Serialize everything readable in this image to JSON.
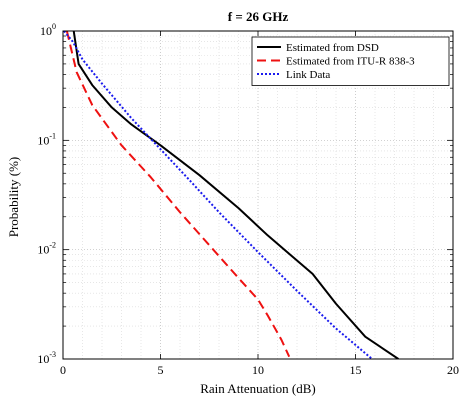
{
  "chart_data": {
    "type": "line",
    "title": "f = 26 GHz",
    "xlabel": "Rain Attenuation (dB)",
    "ylabel": "Probability (%)",
    "xlim": [
      0,
      20
    ],
    "ylim": [
      0.001,
      1
    ],
    "yscale": "log",
    "grid": "on (major and minor, dotted)",
    "legend_position": "top-right",
    "x_ticks": [
      {
        "value": 0,
        "label": "0"
      },
      {
        "value": 5,
        "label": "5"
      },
      {
        "value": 10,
        "label": "10"
      },
      {
        "value": 15,
        "label": "15"
      },
      {
        "value": 20,
        "label": "20"
      }
    ],
    "y_ticks": [
      {
        "value": 1,
        "base": "10",
        "exp": "0"
      },
      {
        "value": 0.1,
        "base": "10",
        "exp": "-1"
      },
      {
        "value": 0.01,
        "base": "10",
        "exp": "-2"
      },
      {
        "value": 0.001,
        "base": "10",
        "exp": "-3"
      }
    ],
    "series": [
      {
        "name": "Estimated from DSD",
        "color": "#000000",
        "style": "solid",
        "x": [
          0.55,
          0.8,
          1.5,
          2.5,
          3.5,
          5.0,
          7.0,
          9.0,
          10.5,
          12.8,
          14.0,
          15.5,
          17.2
        ],
        "y": [
          1.0,
          0.5,
          0.32,
          0.2,
          0.14,
          0.09,
          0.048,
          0.024,
          0.0135,
          0.006,
          0.0032,
          0.0016,
          0.001
        ]
      },
      {
        "name": "Estimated from ITU-R 838-3",
        "color": "#ee1111",
        "style": "dashed",
        "x": [
          0.2,
          0.7,
          1.5,
          3.0,
          4.5,
          6.0,
          7.5,
          9.0,
          10.0,
          10.5,
          11.2,
          11.6
        ],
        "y": [
          1.0,
          0.42,
          0.21,
          0.09,
          0.046,
          0.022,
          0.011,
          0.0055,
          0.0035,
          0.0025,
          0.0015,
          0.00105
        ]
      },
      {
        "name": "Link Data",
        "color": "#1a1aee",
        "style": "dotted",
        "x": [
          0.05,
          0.5,
          1.0,
          2.0,
          3.5,
          5.0,
          6.5,
          8.0,
          10.0,
          12.0,
          14.0,
          16.0
        ],
        "y": [
          1.0,
          0.8,
          0.55,
          0.33,
          0.16,
          0.083,
          0.043,
          0.022,
          0.0095,
          0.0042,
          0.0019,
          0.00095
        ]
      }
    ]
  }
}
